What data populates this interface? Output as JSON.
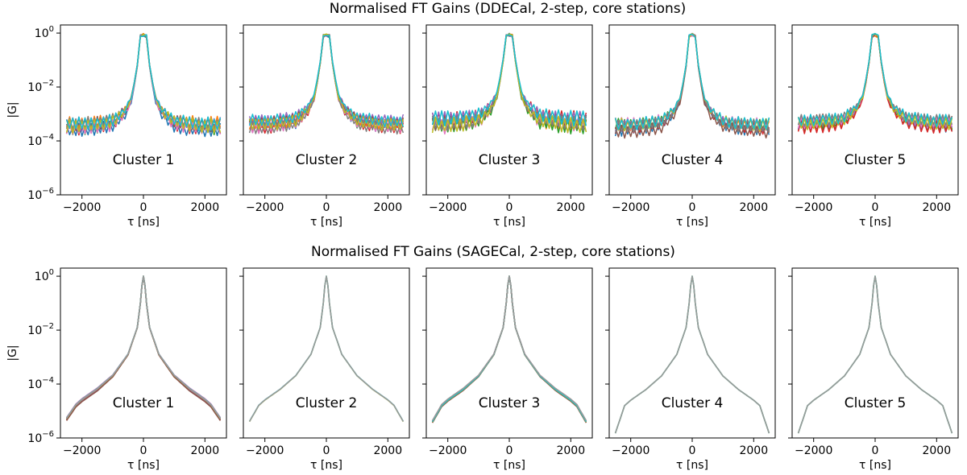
{
  "figure": {
    "title_top": "Normalised FT Gains (DDECal, 2-step, core stations)",
    "title_bottom": "Normalised FT Gains (SAGECal, 2-step, core stations)"
  },
  "chart_data": [
    {
      "type": "line",
      "row": "DDECal",
      "title": "Normalised FT Gains (DDECal, 2-step, core stations)",
      "xlabel": "τ [ns]",
      "ylabel": "|G|",
      "yscale": "log",
      "xlim": [
        -2700,
        2700
      ],
      "ylim": [
        1e-06,
        2.0
      ],
      "xticks": [
        -2000,
        0,
        2000
      ],
      "xtick_labels": [
        "−2000",
        "0",
        "2000"
      ],
      "yticks": [
        1e-06,
        0.0001,
        0.01,
        1.0
      ],
      "ytick_labels": [
        [
          "10",
          "−6"
        ],
        [
          "10",
          "−4"
        ],
        [
          "10",
          "−2"
        ],
        [
          "10",
          "0"
        ]
      ],
      "panels": [
        {
          "label": "Cluster 1",
          "floor": 0.0003,
          "noise": 0.55
        },
        {
          "label": "Cluster 2",
          "floor": 0.0004,
          "noise": 0.5
        },
        {
          "label": "Cluster 3",
          "floor": 0.0005,
          "noise": 0.6
        },
        {
          "label": "Cluster 4",
          "floor": 0.0003,
          "noise": 0.5
        },
        {
          "label": "Cluster 5",
          "floor": 0.0004,
          "noise": 0.5
        }
      ],
      "profile": {
        "tau": [
          -2500,
          -2000,
          -1500,
          -1000,
          -600,
          -400,
          -250,
          -100,
          -50,
          0,
          50,
          100,
          250,
          400,
          600,
          1000,
          1500,
          2000,
          2500
        ],
        "log10_G_excess": [
          0,
          0,
          0.05,
          0.15,
          0.55,
          1.0,
          1.9,
          3.1,
          3.3,
          3.4,
          3.3,
          3.1,
          1.9,
          1.0,
          0.55,
          0.15,
          0.05,
          0,
          0
        ]
      },
      "series_colors": [
        "#1f77b4",
        "#ff7f0e",
        "#2ca02c",
        "#d62728",
        "#9467bd",
        "#8c564b",
        "#e377c2",
        "#7f7f7f",
        "#bcbd22",
        "#17becf"
      ]
    },
    {
      "type": "line",
      "row": "SAGECal",
      "title": "Normalised FT Gains (SAGECal, 2-step, core stations)",
      "xlabel": "τ [ns]",
      "ylabel": "|G|",
      "yscale": "log",
      "xlim": [
        -2700,
        2700
      ],
      "ylim": [
        1e-06,
        2.0
      ],
      "xticks": [
        -2000,
        0,
        2000
      ],
      "xtick_labels": [
        "−2000",
        "0",
        "2000"
      ],
      "yticks": [
        1e-06,
        0.0001,
        0.01,
        1.0
      ],
      "ytick_labels": [
        [
          "10",
          "−6"
        ],
        [
          "10",
          "−4"
        ],
        [
          "10",
          "−2"
        ],
        [
          "10",
          "0"
        ]
      ],
      "panels": [
        {
          "label": "Cluster 1",
          "edge": 5e-06,
          "spread": 0.12,
          "multi": true
        },
        {
          "label": "Cluster 2",
          "edge": 4e-06,
          "spread": 0.03,
          "multi": false
        },
        {
          "label": "Cluster 3",
          "edge": 4e-06,
          "spread": 0.1,
          "multi": true
        },
        {
          "label": "Cluster 4",
          "edge": 1.5e-06,
          "spread": 0.0,
          "multi": false
        },
        {
          "label": "Cluster 5",
          "edge": 1.5e-06,
          "spread": 0.0,
          "multi": false
        }
      ],
      "profile": {
        "tau": [
          -2500,
          -2200,
          -2000,
          -1500,
          -1000,
          -500,
          -200,
          -100,
          0,
          100,
          200,
          500,
          1000,
          1500,
          2000,
          2200,
          2500
        ],
        "log10_G": [
          -5.3,
          -4.8,
          -4.6,
          -4.2,
          -3.7,
          -2.9,
          -1.9,
          -1.0,
          0,
          -1.0,
          -1.9,
          -2.9,
          -3.7,
          -4.2,
          -4.6,
          -4.8,
          -5.3
        ]
      },
      "series_colors": [
        "#1f77b4",
        "#ff7f0e",
        "#2ca02c",
        "#d62728",
        "#9467bd",
        "#8c564b",
        "#e377c2",
        "#bcbd22",
        "#17becf",
        "#999999"
      ]
    }
  ]
}
